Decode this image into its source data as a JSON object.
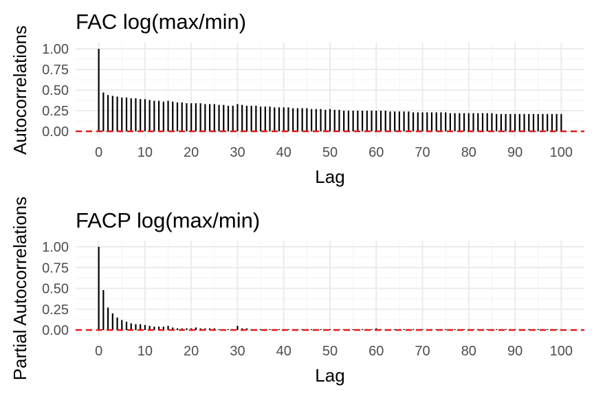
{
  "chart_data": [
    {
      "type": "bar",
      "title": "FAC log(max/min)",
      "xlabel": "Lag",
      "ylabel": "Autocorrelations",
      "xlim": [
        0,
        100
      ],
      "ylim": [
        0,
        1
      ],
      "x_ticks": [
        0,
        10,
        20,
        30,
        40,
        50,
        60,
        70,
        80,
        90,
        100
      ],
      "y_ticks": [
        "0.00",
        "0.25",
        "0.50",
        "0.75",
        "1.00"
      ],
      "reference_line": {
        "y": 0,
        "color": "#e41a1c",
        "style": "dashed"
      },
      "grid": true,
      "series": [
        {
          "color": "#000000",
          "x": [
            0,
            1,
            2,
            3,
            4,
            5,
            6,
            7,
            8,
            9,
            10,
            11,
            12,
            13,
            14,
            15,
            16,
            17,
            18,
            19,
            20,
            21,
            22,
            23,
            24,
            25,
            26,
            27,
            28,
            29,
            30,
            31,
            32,
            33,
            34,
            35,
            36,
            37,
            38,
            39,
            40,
            41,
            42,
            43,
            44,
            45,
            46,
            47,
            48,
            49,
            50,
            51,
            52,
            53,
            54,
            55,
            56,
            57,
            58,
            59,
            60,
            61,
            62,
            63,
            64,
            65,
            66,
            67,
            68,
            69,
            70,
            71,
            72,
            73,
            74,
            75,
            76,
            77,
            78,
            79,
            80,
            81,
            82,
            83,
            84,
            85,
            86,
            87,
            88,
            89,
            90,
            91,
            92,
            93,
            94,
            95,
            96,
            97,
            98,
            99,
            100
          ],
          "values": [
            1.0,
            0.47,
            0.44,
            0.43,
            0.42,
            0.41,
            0.41,
            0.4,
            0.4,
            0.39,
            0.39,
            0.38,
            0.37,
            0.37,
            0.36,
            0.37,
            0.36,
            0.35,
            0.35,
            0.34,
            0.34,
            0.34,
            0.34,
            0.33,
            0.33,
            0.33,
            0.32,
            0.32,
            0.31,
            0.31,
            0.33,
            0.32,
            0.31,
            0.31,
            0.31,
            0.3,
            0.3,
            0.3,
            0.29,
            0.29,
            0.29,
            0.29,
            0.28,
            0.28,
            0.28,
            0.28,
            0.27,
            0.27,
            0.27,
            0.26,
            0.27,
            0.26,
            0.26,
            0.25,
            0.25,
            0.25,
            0.25,
            0.25,
            0.25,
            0.25,
            0.25,
            0.25,
            0.25,
            0.24,
            0.24,
            0.24,
            0.24,
            0.24,
            0.23,
            0.23,
            0.23,
            0.23,
            0.23,
            0.23,
            0.23,
            0.23,
            0.22,
            0.22,
            0.22,
            0.22,
            0.22,
            0.22,
            0.22,
            0.22,
            0.22,
            0.22,
            0.21,
            0.21,
            0.21,
            0.21,
            0.21,
            0.21,
            0.21,
            0.21,
            0.21,
            0.21,
            0.21,
            0.21,
            0.21,
            0.21,
            0.21
          ]
        }
      ]
    },
    {
      "type": "bar",
      "title": "FACP log(max/min)",
      "xlabel": "Lag",
      "ylabel": "Partial Autocorrelations",
      "xlim": [
        0,
        100
      ],
      "ylim": [
        0,
        1
      ],
      "x_ticks": [
        0,
        10,
        20,
        30,
        40,
        50,
        60,
        70,
        80,
        90,
        100
      ],
      "y_ticks": [
        "0.00",
        "0.25",
        "0.50",
        "0.75",
        "1.00"
      ],
      "reference_line": {
        "y": 0,
        "color": "#e41a1c",
        "style": "dashed"
      },
      "grid": true,
      "series": [
        {
          "color": "#000000",
          "x": [
            0,
            1,
            2,
            3,
            4,
            5,
            6,
            7,
            8,
            9,
            10,
            11,
            12,
            13,
            14,
            15,
            16,
            17,
            18,
            19,
            20,
            21,
            22,
            23,
            24,
            25,
            26,
            27,
            28,
            29,
            30,
            31,
            32,
            33,
            34,
            35,
            36,
            37,
            38,
            39,
            40,
            41,
            42,
            43,
            44,
            45,
            46,
            47,
            48,
            49,
            50,
            51,
            52,
            53,
            54,
            55,
            56,
            57,
            58,
            59,
            60,
            61,
            62,
            63,
            64,
            65,
            66,
            67,
            68,
            69,
            70,
            71,
            72,
            73,
            74,
            75,
            76,
            77,
            78,
            79,
            80,
            81,
            82,
            83,
            84,
            85,
            86,
            87,
            88,
            89,
            90,
            91,
            92,
            93,
            94,
            95,
            96,
            97,
            98,
            99,
            100
          ],
          "values": [
            1.0,
            0.48,
            0.27,
            0.2,
            0.15,
            0.12,
            0.1,
            0.08,
            0.07,
            0.07,
            0.06,
            0.05,
            0.04,
            0.04,
            0.04,
            0.05,
            0.03,
            0.02,
            0.02,
            0.02,
            0.02,
            0.03,
            0.02,
            0.02,
            0.02,
            0.02,
            0.01,
            0.01,
            0.01,
            0.01,
            0.05,
            0.02,
            0.02,
            0.01,
            0.01,
            0.01,
            0.01,
            0.01,
            0.01,
            0.01,
            0.01,
            0.01,
            0.01,
            0.01,
            0.01,
            0.01,
            0.01,
            0.01,
            0.01,
            0.01,
            0.01,
            0.01,
            0.01,
            0.01,
            0.01,
            0.01,
            0.01,
            0.01,
            0.01,
            0.01,
            0.02,
            0.01,
            0.01,
            0.01,
            0.01,
            0.01,
            0.01,
            0.01,
            0.01,
            0.01,
            0.01,
            0.01,
            0.01,
            0.01,
            0.01,
            0.01,
            0.01,
            0.01,
            0.01,
            0.01,
            0.01,
            0.01,
            0.01,
            0.01,
            0.01,
            0.01,
            0.01,
            0.01,
            0.01,
            0.01,
            0.01,
            0.01,
            0.01,
            0.01,
            0.01,
            0.01,
            0.01,
            0.01,
            0.01,
            0.01,
            0.01
          ]
        }
      ]
    }
  ]
}
